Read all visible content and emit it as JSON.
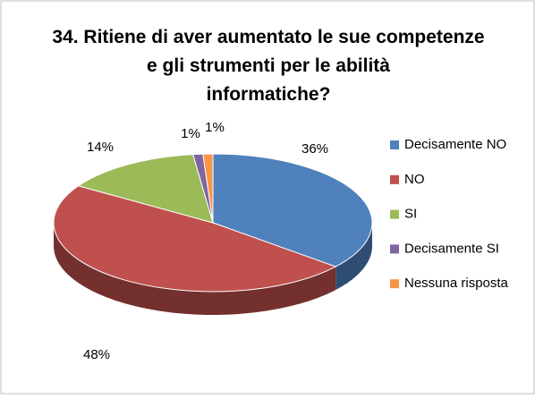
{
  "chart_data": {
    "type": "pie3d",
    "title": "34. Ritiene di aver aumentato le sue competenze e gli strumenti per le abilità informatiche?",
    "categories": [
      "Decisamente NO",
      "NO",
      "SI",
      "Decisamente SI",
      "Nessuna risposta"
    ],
    "values": [
      36,
      48,
      14,
      1,
      1
    ],
    "value_labels": [
      "36%",
      "48%",
      "14%",
      "1%",
      "1%"
    ],
    "colors": [
      "#4f81bd",
      "#c0504d",
      "#9bbb59",
      "#8064a2",
      "#f79646"
    ],
    "legend": "right"
  }
}
